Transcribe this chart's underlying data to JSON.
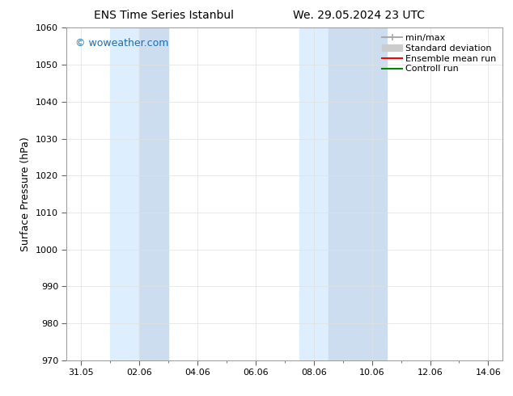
{
  "title_left": "ENS Time Series Istanbul",
  "title_right": "We. 29.05.2024 23 UTC",
  "ylabel": "Surface Pressure (hPa)",
  "ylim": [
    970,
    1060
  ],
  "yticks": [
    970,
    980,
    990,
    1000,
    1010,
    1020,
    1030,
    1040,
    1050,
    1060
  ],
  "x_tick_labels": [
    "31.05",
    "02.06",
    "04.06",
    "06.06",
    "08.06",
    "10.06",
    "12.06",
    "14.06"
  ],
  "x_tick_positions": [
    0,
    2,
    4,
    6,
    8,
    10,
    12,
    14
  ],
  "xlim": [
    -0.5,
    14.5
  ],
  "shade_regions": [
    {
      "xmin": 1.0,
      "xmax": 2.0,
      "color": "#ddeeff"
    },
    {
      "xmin": 2.0,
      "xmax": 3.0,
      "color": "#ccddf0"
    },
    {
      "xmin": 7.5,
      "xmax": 8.5,
      "color": "#ddeeff"
    },
    {
      "xmin": 8.5,
      "xmax": 10.5,
      "color": "#ccddf0"
    }
  ],
  "legend_items": [
    {
      "label": "min/max",
      "color": "#aaaaaa",
      "lw": 1.5,
      "style": "minmax"
    },
    {
      "label": "Standard deviation",
      "color": "#cccccc",
      "lw": 7,
      "style": "band"
    },
    {
      "label": "Ensemble mean run",
      "color": "#ff0000",
      "lw": 1.5,
      "style": "line"
    },
    {
      "label": "Controll run",
      "color": "#008800",
      "lw": 1.5,
      "style": "line"
    }
  ],
  "watermark": "© woweather.com",
  "watermark_color": "#1a6db5",
  "background_color": "#ffffff",
  "plot_bg_color": "#ffffff",
  "grid_color": "#e0e0e0",
  "spine_color": "#999999",
  "tick_color": "#666666",
  "title_fontsize": 10,
  "ylabel_fontsize": 9,
  "tick_fontsize": 8,
  "legend_fontsize": 8
}
